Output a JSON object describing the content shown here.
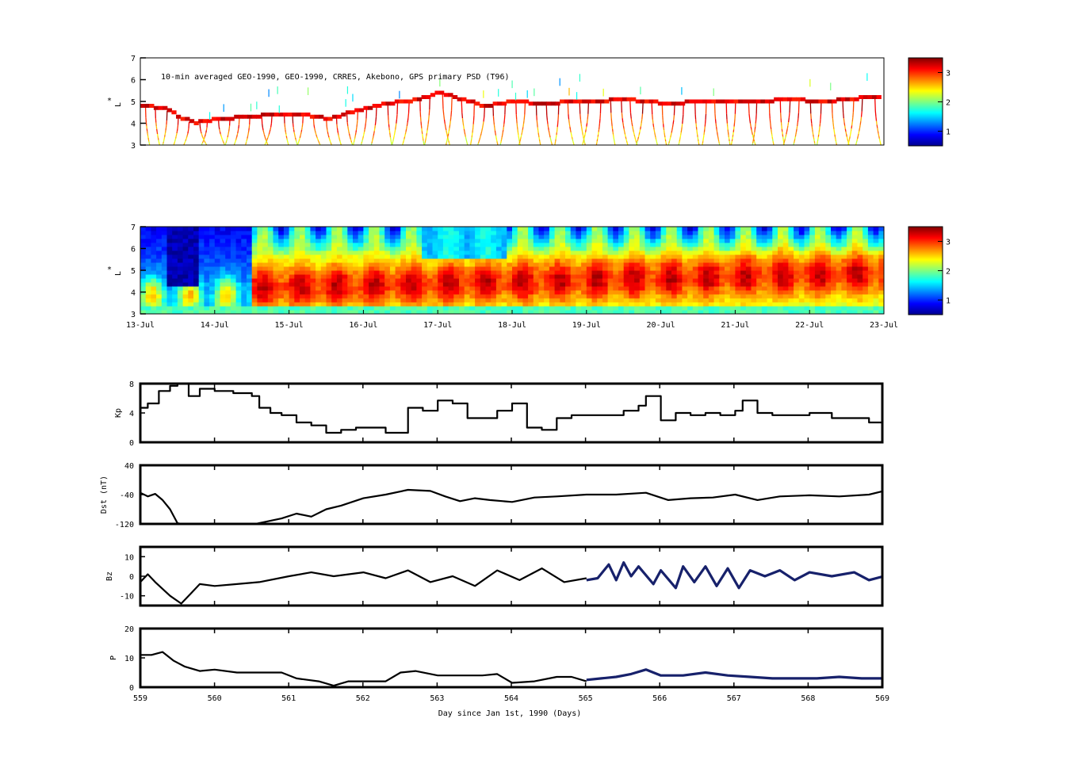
{
  "chart_data": [
    {
      "type": "heatmap",
      "panel": "observed-psd",
      "title": "10-min averaged GEO-1990, GEO-1990, CRRES, Akebono, GPS  primary PSD (T96)",
      "ylabel_star": "*",
      "ylabel": "L",
      "ylim": [
        3,
        7
      ],
      "yticks": [
        "3",
        "4",
        "5",
        "6",
        "7"
      ],
      "colorbar": {
        "min": 0.5,
        "max": 3.5,
        "ticks": [
          "1",
          "2",
          "3"
        ],
        "colormap": "jet"
      },
      "l_trace": [
        [
          559.0,
          4.8
        ],
        [
          559.3,
          4.7
        ],
        [
          559.5,
          4.3
        ],
        [
          559.7,
          4.0
        ],
        [
          560.0,
          4.2
        ],
        [
          560.4,
          4.3
        ],
        [
          560.8,
          4.4
        ],
        [
          561.2,
          4.4
        ],
        [
          561.5,
          4.2
        ],
        [
          561.9,
          4.6
        ],
        [
          562.3,
          4.9
        ],
        [
          562.7,
          5.1
        ],
        [
          563.0,
          5.4
        ],
        [
          563.3,
          5.1
        ],
        [
          563.6,
          4.8
        ],
        [
          564.0,
          5.0
        ],
        [
          564.4,
          4.9
        ],
        [
          564.8,
          5.0
        ],
        [
          565.1,
          5.0
        ],
        [
          565.4,
          5.1
        ],
        [
          565.8,
          5.0
        ],
        [
          566.1,
          4.9
        ],
        [
          566.5,
          5.0
        ],
        [
          566.9,
          5.0
        ],
        [
          567.3,
          5.0
        ],
        [
          567.7,
          5.1
        ],
        [
          568.1,
          5.0
        ],
        [
          568.5,
          5.1
        ],
        [
          568.8,
          5.2
        ],
        [
          569.0,
          5.2
        ]
      ]
    },
    {
      "type": "heatmap",
      "panel": "reanalysis-psd",
      "ylabel_star": "*",
      "ylabel": "L",
      "ylim": [
        3,
        7
      ],
      "yticks": [
        "3",
        "4",
        "5",
        "6",
        "7"
      ],
      "xticks": [
        "13-Jul",
        "14-Jul",
        "15-Jul",
        "16-Jul",
        "17-Jul",
        "18-Jul",
        "19-Jul",
        "20-Jul",
        "21-Jul",
        "22-Jul",
        "23-Jul"
      ],
      "colorbar": {
        "min": 0.5,
        "max": 3.5,
        "ticks": [
          "1",
          "2",
          "3"
        ],
        "colormap": "jet"
      }
    },
    {
      "type": "line",
      "panel": "kp",
      "ylabel": "Kp",
      "ylim": [
        0,
        8
      ],
      "yticks": [
        "0",
        "4",
        "8"
      ],
      "series": [
        {
          "color": "#000000",
          "x": [
            559.0,
            559.1,
            559.25,
            559.4,
            559.5,
            559.65,
            559.8,
            560.0,
            560.25,
            560.5,
            560.6,
            560.75,
            560.9,
            561.1,
            561.3,
            561.5,
            561.7,
            561.9,
            562.1,
            562.3,
            562.45,
            562.6,
            562.8,
            563.0,
            563.2,
            563.4,
            563.6,
            563.8,
            564.0,
            564.2,
            564.4,
            564.6,
            564.8,
            565.0,
            565.3,
            565.5,
            565.7,
            565.8,
            566.0,
            566.2,
            566.4,
            566.6,
            566.8,
            567.0,
            567.1,
            567.3,
            567.5,
            567.7,
            568.0,
            568.3,
            568.6,
            568.8,
            569.0
          ],
          "y": [
            4.7,
            5.3,
            7.0,
            7.7,
            8.0,
            6.3,
            7.3,
            7.0,
            6.7,
            6.3,
            4.7,
            4.0,
            3.7,
            2.7,
            2.3,
            1.3,
            1.7,
            2.0,
            2.0,
            1.3,
            1.3,
            4.7,
            4.3,
            5.7,
            5.3,
            3.3,
            3.3,
            4.3,
            5.3,
            2.0,
            1.7,
            3.3,
            3.7,
            3.7,
            3.7,
            4.3,
            5.0,
            6.3,
            3.0,
            4.0,
            3.7,
            4.0,
            3.7,
            4.3,
            5.7,
            4.0,
            3.7,
            3.7,
            4.0,
            3.3,
            3.3,
            2.7,
            4.3
          ]
        }
      ]
    },
    {
      "type": "line",
      "panel": "dst",
      "ylabel": "Dst (nT)",
      "ylim": [
        -120,
        40
      ],
      "yticks": [
        "-120",
        "-40",
        "40"
      ],
      "series": [
        {
          "color": "#000000",
          "x": [
            559.0,
            559.1,
            559.2,
            559.3,
            559.4,
            559.5,
            559.7,
            560.0,
            560.5,
            560.9,
            561.1,
            561.3,
            561.5,
            561.7,
            562.0,
            562.3,
            562.6,
            562.9,
            563.1,
            563.3,
            563.5,
            563.7,
            564.0,
            564.3,
            564.6,
            565.0,
            565.4,
            565.8,
            566.1,
            566.4,
            566.7,
            567.0,
            567.3,
            567.6,
            568.0,
            568.4,
            568.8,
            569.0
          ],
          "y": [
            -35,
            -45,
            -38,
            -55,
            -80,
            -118,
            -125,
            -120,
            -122,
            -105,
            -92,
            -100,
            -80,
            -70,
            -50,
            -40,
            -27,
            -30,
            -45,
            -58,
            -50,
            -55,
            -60,
            -48,
            -45,
            -40,
            -40,
            -35,
            -55,
            -50,
            -48,
            -40,
            -55,
            -45,
            -42,
            -45,
            -40,
            -30
          ]
        }
      ]
    },
    {
      "type": "line",
      "panel": "bz",
      "ylabel": "Bz",
      "ylim": [
        -15,
        15
      ],
      "yticks": [
        "-10",
        "0",
        "10"
      ],
      "series": [
        {
          "color": "#000000",
          "x": [
            559.0,
            559.1,
            559.2,
            559.4,
            559.55,
            559.7,
            559.8,
            560.0,
            560.3,
            560.6,
            561.0,
            561.3,
            561.6,
            562.0,
            562.3,
            562.6,
            562.9,
            563.2,
            563.5,
            563.8,
            564.1,
            564.4,
            564.7,
            565.0
          ],
          "y": [
            -3,
            1,
            -3,
            -10,
            -14,
            -8,
            -4,
            -5,
            -4,
            -3,
            0,
            2,
            0,
            2,
            -1,
            3,
            -3,
            0,
            -5,
            3,
            -2,
            4,
            -3,
            -1
          ]
        },
        {
          "color": "#17216b",
          "x": [
            565.0,
            565.15,
            565.3,
            565.4,
            565.5,
            565.6,
            565.7,
            565.9,
            566.0,
            566.2,
            566.3,
            566.45,
            566.6,
            566.75,
            566.9,
            567.05,
            567.2,
            567.4,
            567.6,
            567.8,
            568.0,
            568.3,
            568.6,
            568.8,
            569.0
          ],
          "y": [
            -2,
            -1,
            6,
            -2,
            7,
            0,
            5,
            -4,
            3,
            -6,
            5,
            -3,
            5,
            -5,
            4,
            -6,
            3,
            0,
            3,
            -2,
            2,
            0,
            2,
            -2,
            0
          ]
        }
      ]
    },
    {
      "type": "line",
      "panel": "p",
      "ylabel": "P",
      "ylim": [
        0,
        20
      ],
      "yticks": [
        "0",
        "10",
        "20"
      ],
      "xlabel": "Day since Jan 1st, 1990 (Days)",
      "xlim": [
        559,
        569
      ],
      "xticks": [
        "559",
        "560",
        "561",
        "562",
        "563",
        "564",
        "565",
        "566",
        "567",
        "568",
        "569"
      ],
      "series": [
        {
          "color": "#000000",
          "x": [
            559.0,
            559.15,
            559.3,
            559.45,
            559.6,
            559.8,
            560.0,
            560.3,
            560.6,
            560.9,
            561.1,
            561.4,
            561.6,
            561.8,
            562.0,
            562.3,
            562.5,
            562.7,
            563.0,
            563.3,
            563.6,
            563.8,
            564.0,
            564.3,
            564.6,
            564.8,
            565.0
          ],
          "y": [
            11,
            11,
            12,
            9,
            7,
            5.5,
            6,
            5,
            5,
            5,
            3,
            2,
            0.5,
            2,
            2,
            2,
            5,
            5.5,
            4,
            4,
            4,
            4.5,
            1.5,
            2,
            3.5,
            3.5,
            2
          ]
        },
        {
          "color": "#17216b",
          "x": [
            565.0,
            565.2,
            565.4,
            565.6,
            565.8,
            566.0,
            566.3,
            566.6,
            566.9,
            567.2,
            567.5,
            567.8,
            568.1,
            568.4,
            568.7,
            569.0
          ],
          "y": [
            2.5,
            3,
            3.5,
            4.5,
            6,
            4,
            4,
            5,
            4,
            3.5,
            3,
            3,
            3,
            3.5,
            3,
            3
          ]
        }
      ]
    }
  ]
}
